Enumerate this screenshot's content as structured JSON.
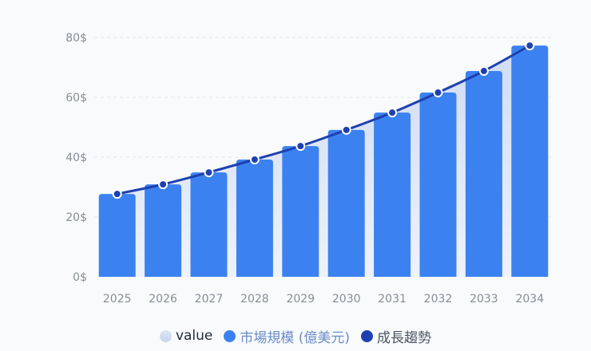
{
  "chart_data": {
    "type": "bar",
    "title": "",
    "xlabel": "",
    "ylabel": "",
    "ylim": [
      0,
      80
    ],
    "yticks": [
      "0$",
      "20$",
      "40$",
      "60$",
      "80$"
    ],
    "grid": true,
    "legend_position": "bottom",
    "categories": [
      "2025",
      "2026",
      "2027",
      "2028",
      "2029",
      "2030",
      "2031",
      "2032",
      "2033",
      "2034"
    ],
    "series": [
      {
        "name": "value",
        "type": "area",
        "values": [
          27.7,
          30.9,
          34.9,
          39.2,
          43.7,
          49.1,
          54.9,
          61.6,
          68.8,
          77.3
        ]
      },
      {
        "name": "市場規模 (億美元)",
        "type": "bar",
        "values": [
          27.7,
          30.9,
          34.9,
          39.2,
          43.7,
          49.1,
          54.9,
          61.6,
          68.8,
          77.3
        ]
      },
      {
        "name": "成長趨勢",
        "type": "line",
        "values": [
          27.7,
          30.9,
          34.9,
          39.2,
          43.7,
          49.1,
          54.9,
          61.6,
          68.8,
          77.3
        ]
      }
    ],
    "colors": {
      "area": "#d6e1f4",
      "bar": "#3b82f0",
      "line": "#1e40af"
    }
  },
  "legend": {
    "items": [
      {
        "label": "value"
      },
      {
        "label": "市場規模 (億美元)"
      },
      {
        "label": "成長趨勢"
      }
    ]
  }
}
